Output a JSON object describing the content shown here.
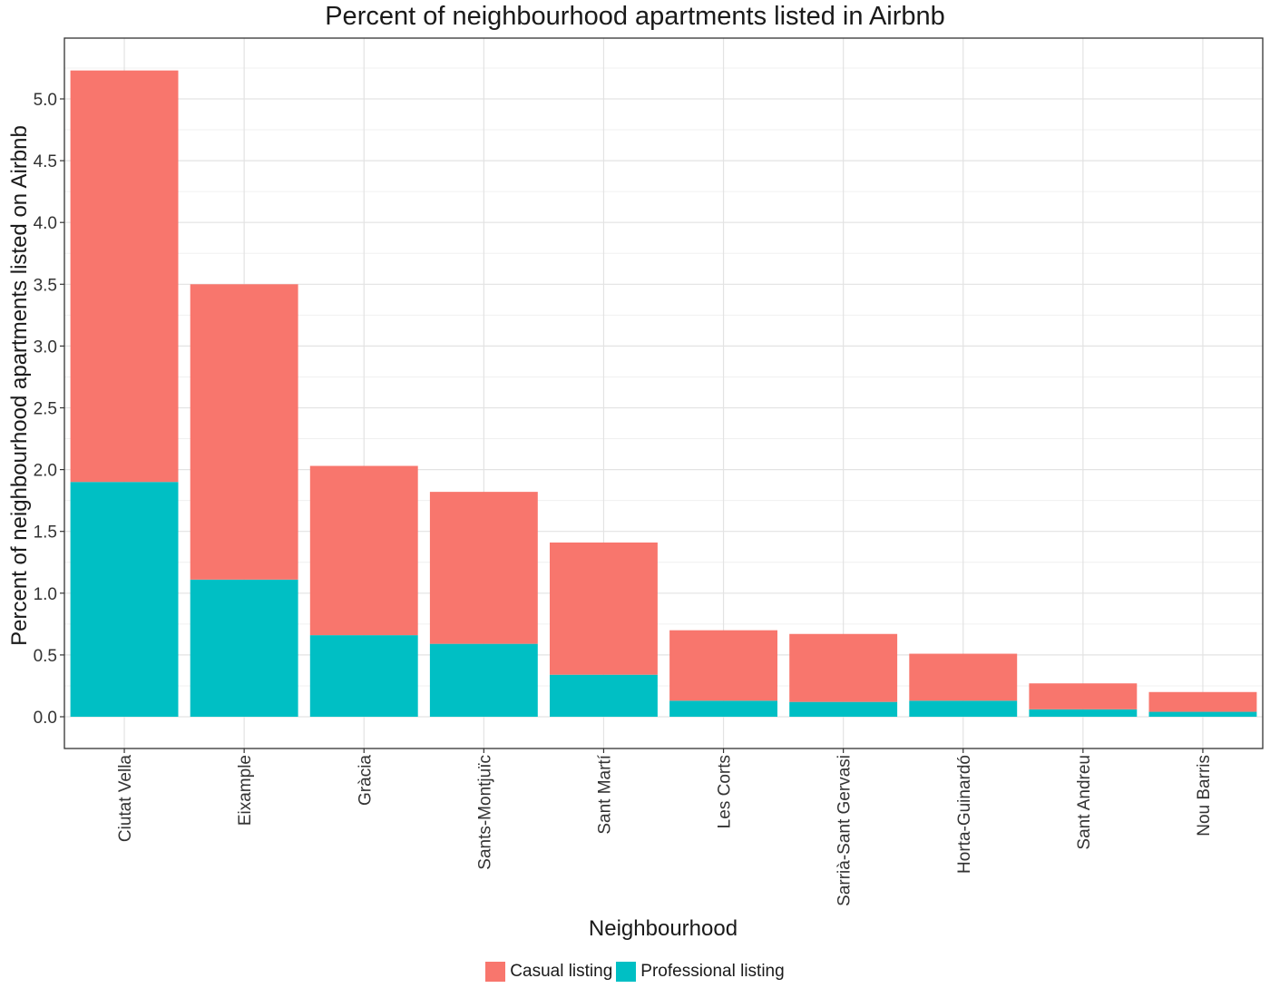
{
  "chart_data": {
    "type": "bar",
    "stacked": true,
    "title": "Percent of neighbourhood apartments listed in Airbnb",
    "xlabel": "Neighbourhood",
    "ylabel": "Percent of neighbourhood apartments listed on Airbnb",
    "ylim": [
      -0.25,
      5.5
    ],
    "yticks": [
      "0.0",
      "0.5",
      "1.0",
      "1.5",
      "2.0",
      "2.5",
      "3.0",
      "3.5",
      "4.0",
      "4.5",
      "5.0"
    ],
    "grid": true,
    "legend_position": "bottom",
    "categories": [
      "Ciutat Vella",
      "Eixample",
      "Gràcia",
      "Sants-Montjuïc",
      "Sant Martí",
      "Les Corts",
      "Sarrià-Sant Gervasi",
      "Horta-Guinardó",
      "Sant Andreu",
      "Nou Barris"
    ],
    "series": [
      {
        "name": "Professional listing",
        "color": "#00BFC4",
        "values": [
          1.9,
          1.11,
          0.66,
          0.59,
          0.34,
          0.13,
          0.12,
          0.13,
          0.06,
          0.04
        ]
      },
      {
        "name": "Casual listing",
        "color": "#F8766D",
        "values": [
          3.33,
          2.39,
          1.37,
          1.23,
          1.07,
          0.57,
          0.55,
          0.38,
          0.21,
          0.16
        ]
      }
    ],
    "legend_order": [
      "Casual listing",
      "Professional listing"
    ]
  }
}
